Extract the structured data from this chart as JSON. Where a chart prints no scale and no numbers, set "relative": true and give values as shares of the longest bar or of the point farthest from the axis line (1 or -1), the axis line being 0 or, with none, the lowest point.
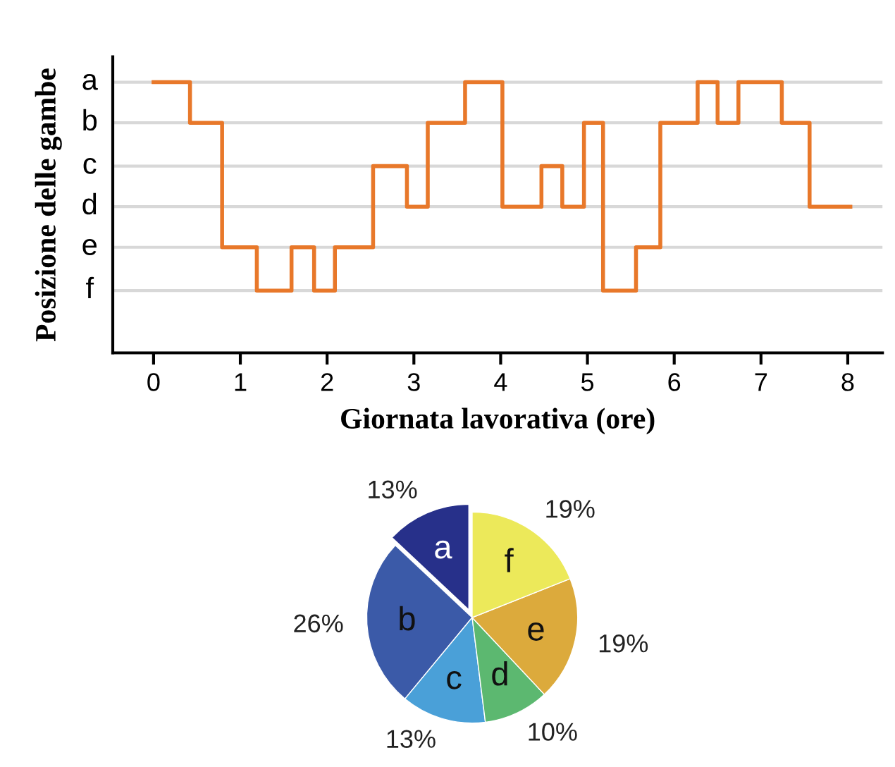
{
  "chart_data": [
    {
      "type": "step",
      "xlabel": "Giornata lavorativa (ore)",
      "ylabel": "Posizione delle gambe",
      "x": [
        0,
        0.42,
        0.79,
        1.19,
        1.59,
        1.85,
        2.09,
        2.53,
        2.92,
        3.16,
        3.59,
        4.02,
        4.47,
        4.71,
        4.96,
        5.18,
        5.56,
        5.84,
        6.27,
        6.5,
        6.74,
        7.24,
        7.56,
        8.03
      ],
      "values": [
        1,
        0.85,
        0.39,
        0.23,
        0.39,
        0.23,
        0.39,
        0.69,
        0.54,
        0.85,
        1,
        0.54,
        0.69,
        0.54,
        0.85,
        0.23,
        0.39,
        0.85,
        1,
        0.85,
        1,
        0.85,
        0.54,
        0.54
      ],
      "relative": true,
      "color": "#e8782a",
      "xlim": [
        -0.47,
        8.4
      ],
      "xticks": [
        0,
        1,
        2,
        3,
        4,
        5,
        6,
        7,
        8
      ],
      "ref_lines": [
        {
          "axis": "y",
          "value": 1,
          "label": "a",
          "color": "#d8d8d8"
        },
        {
          "axis": "y",
          "value": 0.85,
          "label": "b",
          "color": "#d8d8d8"
        },
        {
          "axis": "y",
          "value": 0.69,
          "label": "c",
          "color": "#d8d8d8"
        },
        {
          "axis": "y",
          "value": 0.54,
          "label": "d",
          "color": "#d8d8d8"
        },
        {
          "axis": "y",
          "value": 0.39,
          "label": "e",
          "color": "#d8d8d8"
        },
        {
          "axis": "y",
          "value": 0.23,
          "label": "f",
          "color": "#d8d8d8"
        }
      ]
    },
    {
      "type": "pie",
      "categories": [
        "a",
        "b",
        "c",
        "d",
        "e",
        "f"
      ],
      "values": [
        13,
        26,
        13,
        10,
        19,
        19
      ],
      "colors": [
        "#27308a",
        "#3b5aa8",
        "#4aa0d8",
        "#5cb870",
        "#dcaa3c",
        "#ece95a"
      ],
      "value_labels": [
        "13%",
        "26%",
        "13%",
        "10%",
        "19%",
        "19%"
      ]
    }
  ]
}
